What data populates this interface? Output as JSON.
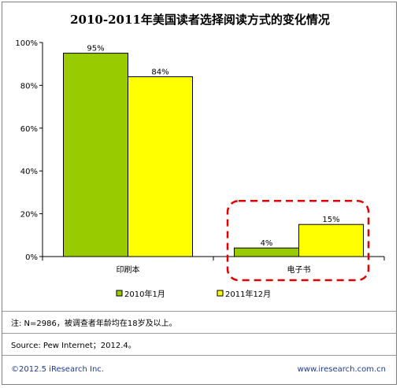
{
  "chart_data": {
    "type": "bar",
    "title": "2010-2011年美国读者选择阅读方式的变化情况",
    "categories": [
      "印刷本",
      "电子书"
    ],
    "series": [
      {
        "name": "2010年1月",
        "values": [
          95,
          4
        ],
        "labels": [
          "95%",
          "4%"
        ],
        "color": "#99cc00"
      },
      {
        "name": "2011年12月",
        "values": [
          84,
          15
        ],
        "labels": [
          "84%",
          "15%"
        ],
        "color": "#ffff00"
      }
    ],
    "yticks": [
      "0%",
      "20%",
      "40%",
      "60%",
      "80%",
      "100%"
    ],
    "ylim": [
      0,
      100
    ],
    "grid": false,
    "legend": "bottom",
    "highlight_color": "#e00000"
  },
  "footer": {
    "note": "注: N=2986，被调查者年龄均在18岁及以上。",
    "source": "Source: Pew Internet；2012.4。",
    "copyright": "©2012.5 iResearch Inc.",
    "website": "www.iresearch.com.cn"
  }
}
